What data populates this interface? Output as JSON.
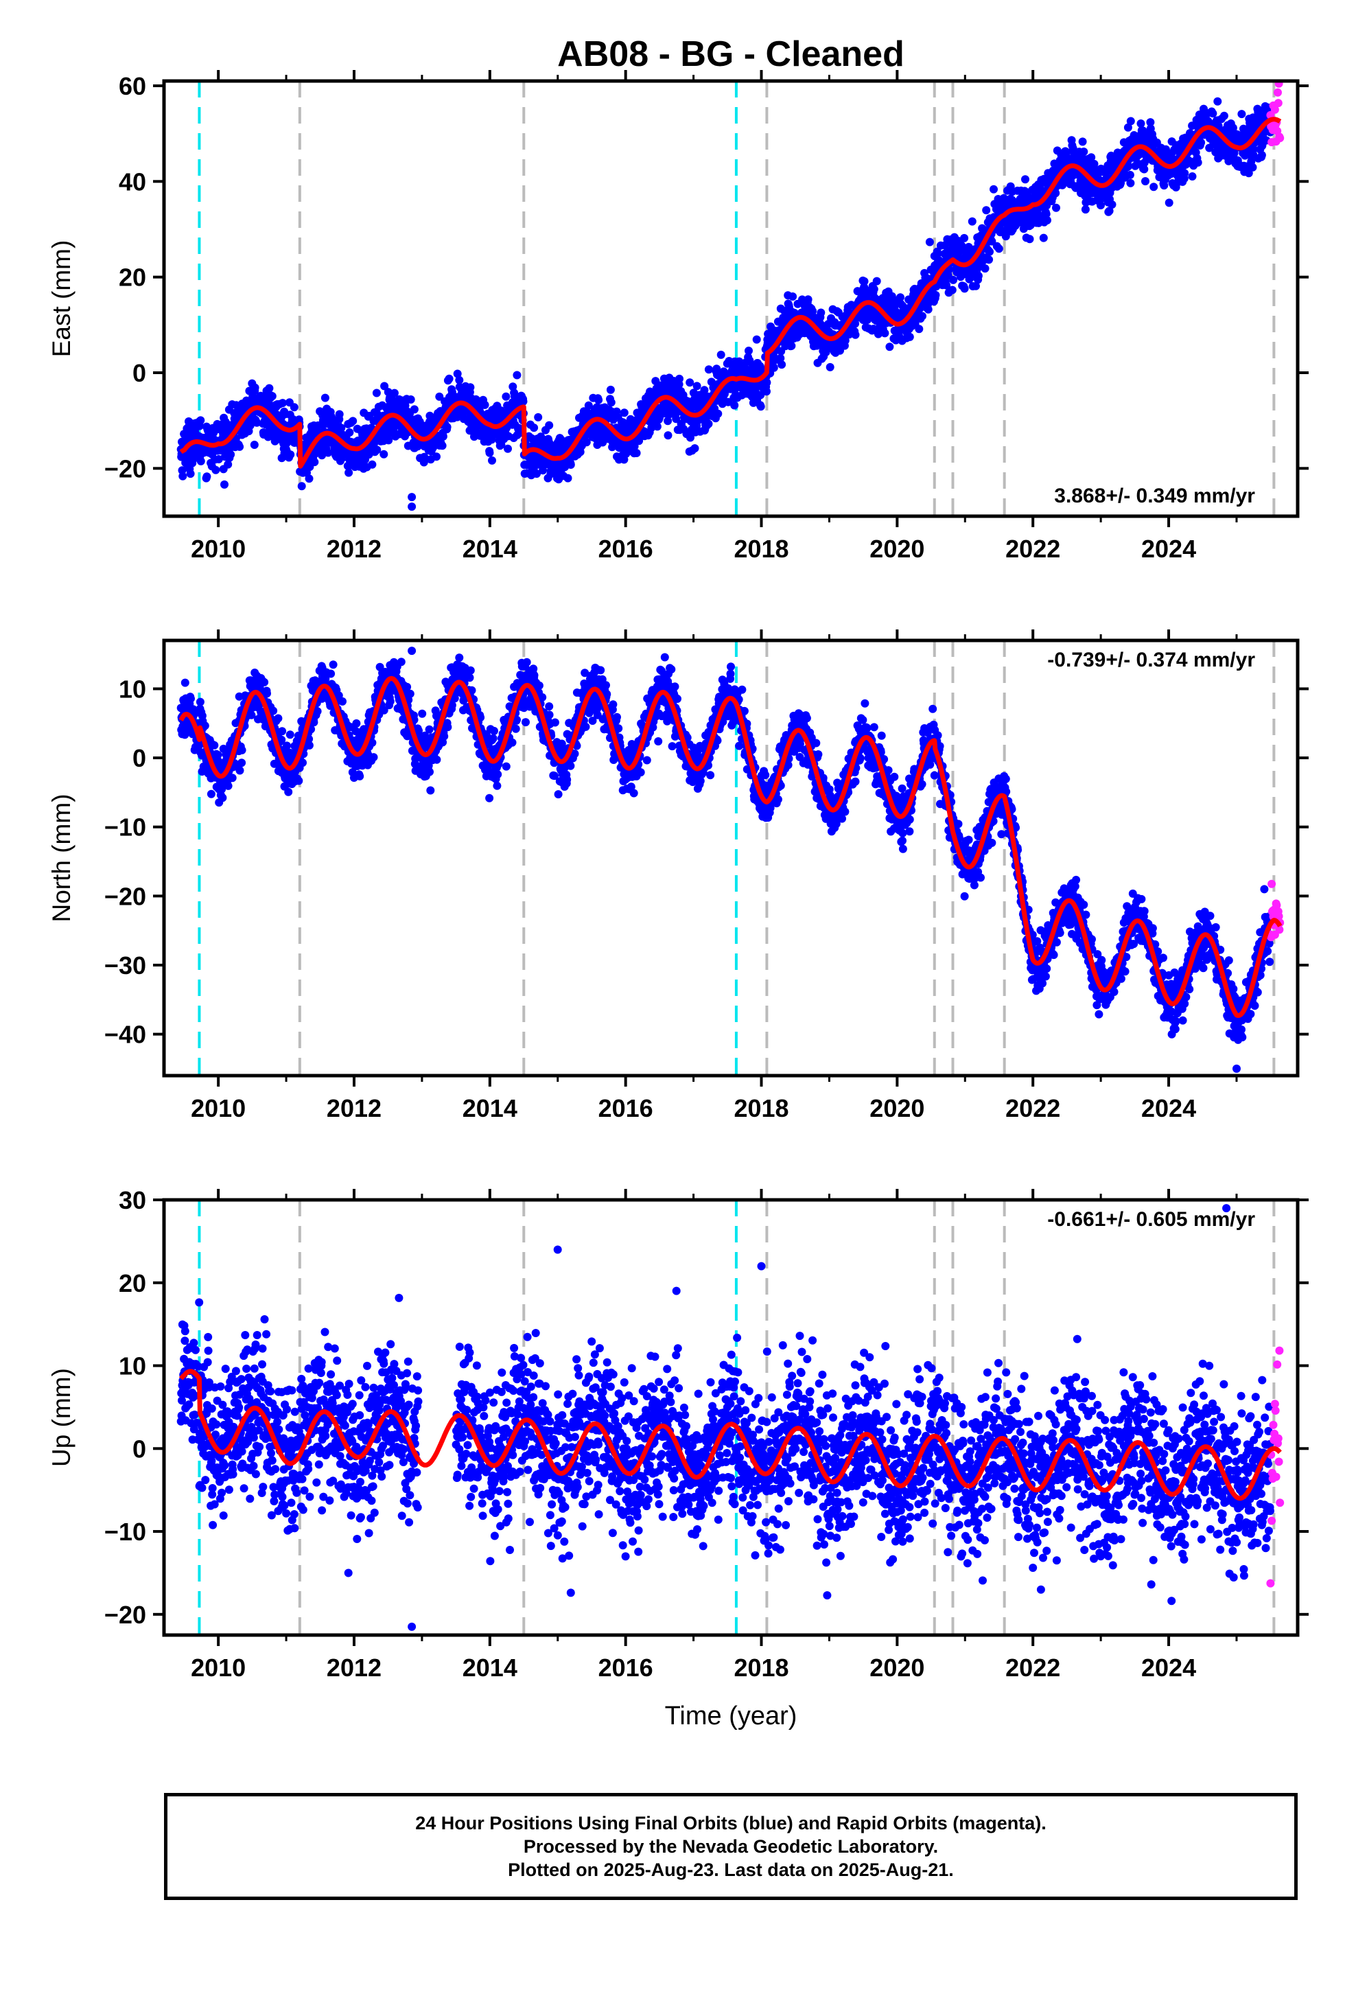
{
  "title": "AB08  - BG - Cleaned",
  "xlabel": "Time (year)",
  "x_ticks": [
    2010,
    2012,
    2014,
    2016,
    2018,
    2020,
    2022,
    2024
  ],
  "x_range": [
    2009.2,
    2025.9
  ],
  "event_lines": {
    "cyan": [
      2009.72,
      2017.63
    ],
    "gray": [
      2011.2,
      2014.5,
      2018.08,
      2020.55,
      2020.82,
      2021.58,
      2025.55
    ]
  },
  "colors": {
    "final_orbits": "#0000ff",
    "rapid_orbits": "#ff22ff",
    "model": "#ff0000",
    "cyan_line": "#00e5ee",
    "gray_line": "#bbbbbb"
  },
  "caption": {
    "line1": "24 Hour Positions Using Final Orbits (blue) and Rapid Orbits (magenta).",
    "line2": "Processed by the Nevada Geodetic Laboratory.",
    "line3": "Plotted on 2025-Aug-23. Last data on 2025-Aug-21."
  },
  "chart_data": [
    {
      "type": "scatter",
      "component": "east",
      "ylabel": "East (mm)",
      "ylim": [
        -30,
        61
      ],
      "y_ticks": [
        -20,
        0,
        20,
        40,
        60
      ],
      "rate_label": "3.868+/- 0.349 mm/yr",
      "rate_position": "bottom-right",
      "trend": [
        [
          2009.5,
          -19
        ],
        [
          2010.0,
          -12
        ],
        [
          2011.0,
          -9
        ],
        [
          2011.2,
          -9
        ],
        [
          2011.2,
          -18
        ],
        [
          2012.0,
          -13
        ],
        [
          2013.0,
          -11
        ],
        [
          2014.0,
          -8
        ],
        [
          2014.5,
          -10
        ],
        [
          2014.5,
          -20
        ],
        [
          2015.0,
          -15
        ],
        [
          2016.0,
          -11
        ],
        [
          2017.0,
          -6
        ],
        [
          2017.63,
          -4
        ],
        [
          2018.08,
          3
        ],
        [
          2018.08,
          7
        ],
        [
          2019.0,
          10
        ],
        [
          2020.0,
          13
        ],
        [
          2020.55,
          16
        ],
        [
          2020.82,
          24
        ],
        [
          2021.58,
          30
        ],
        [
          2022.0,
          38
        ],
        [
          2023.0,
          42
        ],
        [
          2024.0,
          46
        ],
        [
          2025.0,
          50
        ],
        [
          2025.55,
          50
        ]
      ],
      "seasonal_amplitude": 3,
      "scatter": 2.5,
      "series": [
        {
          "name": "Final Orbits (blue)",
          "start": 2009.45,
          "end": 2025.5
        },
        {
          "name": "Rapid Orbits (magenta)",
          "start": 2025.5,
          "end": 2025.64
        }
      ],
      "outliers": [
        [
          2012.85,
          -28
        ],
        [
          2012.85,
          -26
        ]
      ]
    },
    {
      "type": "scatter",
      "component": "north",
      "ylabel": "North (mm)",
      "ylim": [
        -46,
        17
      ],
      "y_ticks": [
        -40,
        -30,
        -20,
        -10,
        0,
        10
      ],
      "rate_label": "-0.739+/- 0.374 mm/yr",
      "rate_position": "top-right",
      "trend": [
        [
          2009.5,
          1
        ],
        [
          2009.72,
          0
        ],
        [
          2009.72,
          2
        ],
        [
          2010.5,
          4
        ],
        [
          2011.2,
          4
        ],
        [
          2011.2,
          4
        ],
        [
          2012.0,
          6
        ],
        [
          2013.0,
          6
        ],
        [
          2014.0,
          5
        ],
        [
          2015.0,
          5
        ],
        [
          2016.0,
          4
        ],
        [
          2017.0,
          4
        ],
        [
          2017.63,
          3
        ],
        [
          2018.08,
          -1
        ],
        [
          2019.0,
          -2
        ],
        [
          2020.0,
          -3
        ],
        [
          2020.55,
          -3
        ],
        [
          2020.55,
          -4
        ],
        [
          2020.82,
          -10
        ],
        [
          2021.58,
          -11
        ],
        [
          2022.0,
          -24
        ],
        [
          2023.0,
          -28
        ],
        [
          2024.0,
          -30
        ],
        [
          2025.0,
          -32
        ],
        [
          2025.55,
          -29
        ]
      ],
      "seasonal_amplitude": 5.5,
      "scatter": 1.8,
      "series": [
        {
          "name": "Final Orbits (blue)",
          "start": 2009.45,
          "end": 2025.5
        },
        {
          "name": "Rapid Orbits (magenta)",
          "start": 2025.5,
          "end": 2025.64
        }
      ],
      "outliers": [
        [
          2012.85,
          15.5
        ],
        [
          2025.0,
          -45
        ]
      ]
    },
    {
      "type": "scatter",
      "component": "up",
      "ylabel": "Up (mm)",
      "ylim": [
        -22.5,
        30
      ],
      "y_ticks": [
        -20,
        -10,
        0,
        10,
        20,
        30
      ],
      "rate_label": "-0.661+/- 0.605 mm/yr",
      "rate_position": "top-right",
      "trend": [
        [
          2009.5,
          6
        ],
        [
          2009.72,
          7
        ],
        [
          2009.72,
          3
        ],
        [
          2011.2,
          1
        ],
        [
          2012.0,
          2
        ],
        [
          2013.0,
          1
        ],
        [
          2014.0,
          1
        ],
        [
          2015.0,
          0
        ],
        [
          2016.0,
          0
        ],
        [
          2017.0,
          -0.5
        ],
        [
          2017.63,
          0
        ],
        [
          2018.0,
          0
        ],
        [
          2019.0,
          -1
        ],
        [
          2020.0,
          -1.5
        ],
        [
          2021.0,
          -1.5
        ],
        [
          2022.0,
          -2
        ],
        [
          2023.0,
          -2
        ],
        [
          2024.0,
          -2.5
        ],
        [
          2025.0,
          -3
        ],
        [
          2025.55,
          -3
        ]
      ],
      "seasonal_amplitude": 3,
      "scatter": 4.5,
      "series": [
        {
          "name": "Final Orbits (blue)",
          "start": 2009.45,
          "end": 2025.5
        },
        {
          "name": "Rapid Orbits (magenta)",
          "start": 2025.5,
          "end": 2025.64
        }
      ],
      "gaps": [
        [
          2012.95,
          2013.5
        ]
      ],
      "outliers": [
        [
          2012.85,
          -21.5
        ],
        [
          2015.0,
          24
        ],
        [
          2018.0,
          22
        ],
        [
          2024.85,
          29
        ]
      ]
    }
  ]
}
